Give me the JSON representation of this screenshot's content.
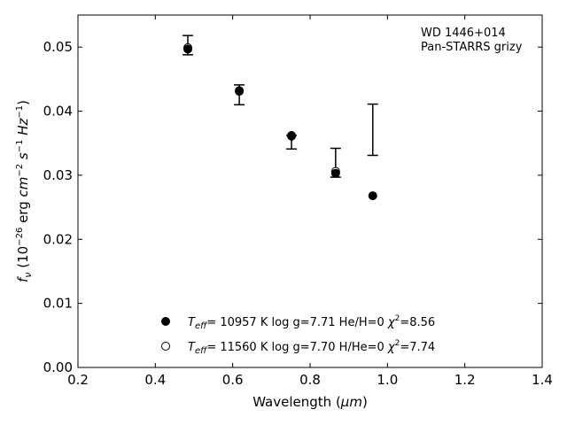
{
  "chart_data": {
    "type": "scatter",
    "xlabel_main": "Wavelength (",
    "xlabel_unit": "μm",
    "xlabel_close": ")",
    "ylabel": {
      "f": "f",
      "nu": "ν",
      "open": " (10",
      "exp1": "−26",
      "erg": " erg ",
      "cm": "cm",
      "exp2": "−2",
      "s": " s",
      "exp3": "−1",
      "hz": " Hz",
      "exp4": "−1",
      "close": ")"
    },
    "xlim": [
      0.2,
      1.4
    ],
    "ylim": [
      0.0,
      0.055
    ],
    "xticks": [
      "0.2",
      "0.4",
      "0.6",
      "0.8",
      "1.0",
      "1.2",
      "1.4"
    ],
    "yticks": [
      "0.00",
      "0.01",
      "0.02",
      "0.03",
      "0.04",
      "0.05"
    ],
    "annotation": [
      "WD 1446+014",
      "Pan-STARRS grizy"
    ],
    "observed": [
      {
        "x": 0.484,
        "y": 0.0503,
        "lo": 0.0488,
        "hi": 0.0518
      },
      {
        "x": 0.617,
        "y": 0.0425,
        "lo": 0.041,
        "hi": 0.0441
      },
      {
        "x": 0.752,
        "y": 0.0355,
        "lo": 0.0341,
        "hi": 0.0362
      },
      {
        "x": 0.866,
        "y": 0.032,
        "lo": 0.0297,
        "hi": 0.0342
      },
      {
        "x": 0.962,
        "y": 0.0371,
        "lo": 0.0331,
        "hi": 0.0411
      }
    ],
    "series": [
      {
        "marker": "filled",
        "legend": {
          "t": "T",
          "sub": "eff",
          "rest": "= 10957 K  log g=7.71  He/H=0  ",
          "chi": "χ",
          "sup": "2",
          "val": "=8.56"
        },
        "points": [
          {
            "x": 0.484,
            "y": 0.0497
          },
          {
            "x": 0.617,
            "y": 0.0431
          },
          {
            "x": 0.752,
            "y": 0.0361
          },
          {
            "x": 0.866,
            "y": 0.0303
          },
          {
            "x": 0.962,
            "y": 0.0268
          }
        ]
      },
      {
        "marker": "open",
        "legend": {
          "t": "T",
          "sub": "eff",
          "rest": "= 11560 K  log g=7.70  H/He=0  ",
          "chi": "χ",
          "sup": "2",
          "val": "=7.74"
        },
        "points": [
          {
            "x": 0.484,
            "y": 0.0499
          },
          {
            "x": 0.617,
            "y": 0.0432
          },
          {
            "x": 0.752,
            "y": 0.0362
          },
          {
            "x": 0.866,
            "y": 0.0306
          }
        ]
      }
    ]
  }
}
